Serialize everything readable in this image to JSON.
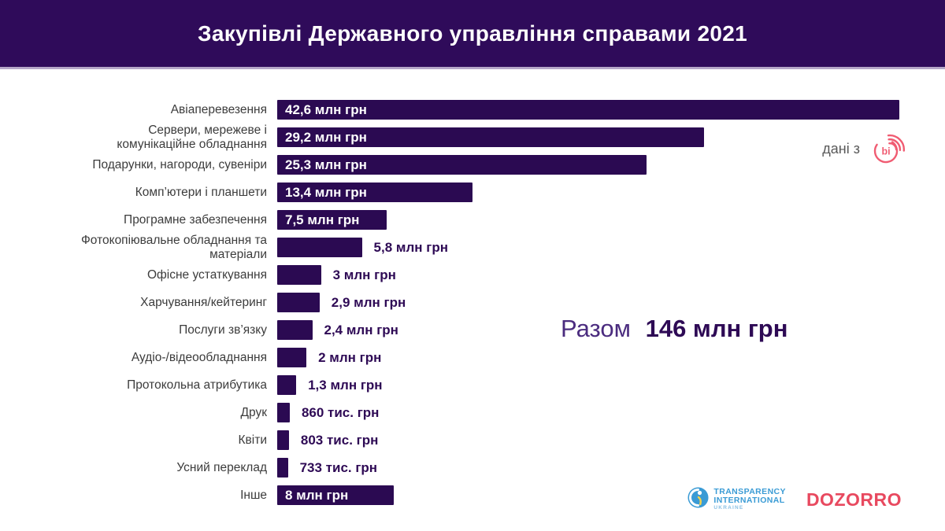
{
  "header": {
    "title": "Закупівлі Державного управління справами 2021"
  },
  "data_source": {
    "label": "дані з",
    "logo": "prozorro-bi-logo"
  },
  "total": {
    "label": "Разом",
    "value": "146 млн грн"
  },
  "footer": {
    "ti": {
      "line1": "TRANSPARENCY",
      "line2": "INTERNATIONAL",
      "line3": "UKRAINE"
    },
    "dozorro": "DOZORRO"
  },
  "colors": {
    "header_bg": "#2F0B5A",
    "header_border": "#B5A7C8",
    "bar_fill": "#2B0A52",
    "value_text": "#2E0A55",
    "category_text": "#3C3C3C",
    "total_label": "#4B2C7F",
    "bi_logo_pink": "#F05C72",
    "dozorro_red": "#E8495F",
    "ti_blue": "#3A9BD5",
    "white": "#FFFFFF"
  },
  "chart_data": {
    "type": "bar",
    "orientation": "horizontal",
    "title": "Закупівлі Державного управління справами 2021",
    "xlabel": "",
    "ylabel": "",
    "unit": "млн грн",
    "xlim": [
      0,
      42.6
    ],
    "grid": false,
    "legend": "none",
    "categories": [
      "Авіаперевезення",
      "Сервери, мережеве і\nкомунікаційне обладнання",
      "Подарунки, нагороди, сувеніри",
      "Комп’ютери і планшети",
      "Програмне забезпечення",
      "Фотокопіювальне обладнання та\nматеріали",
      "Офісне устаткування",
      "Харчування/кейтеринг",
      "Послуги зв’язку",
      "Аудіо-/відеообладнання",
      "Протокольна атрибутика",
      "Друк",
      "Квіти",
      "Усний переклад",
      "Інше"
    ],
    "values": [
      42.6,
      29.2,
      25.3,
      13.4,
      7.5,
      5.8,
      3,
      2.9,
      2.4,
      2,
      1.3,
      0.86,
      0.803,
      0.733,
      8
    ],
    "value_labels": [
      "42,6 млн грн",
      "29,2 млн грн",
      "25,3 млн грн",
      "13,4 млн грн",
      "7,5 млн грн",
      "5,8 млн грн",
      "3 млн грн",
      "2,9 млн грн",
      "2,4 млн грн",
      "2 млн грн",
      "1,3 млн грн",
      "860 тис. грн",
      "803 тис. грн",
      "733 тис. грн",
      "8 млн грн"
    ],
    "label_inside": [
      true,
      true,
      true,
      true,
      true,
      false,
      false,
      false,
      false,
      false,
      false,
      false,
      false,
      false,
      true
    ],
    "total_label": "Разом",
    "total_value": "146 млн грн"
  }
}
